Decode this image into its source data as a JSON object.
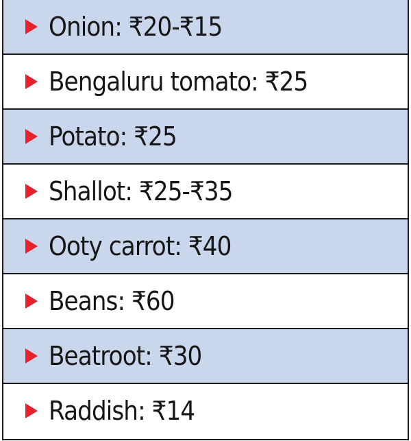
{
  "items": [
    {
      "label": "Onion: ₹20-₹15"
    },
    {
      "label": "Bengaluru tomato: ₹25"
    },
    {
      "label": "Potato: ₹25"
    },
    {
      "label": "Shallot: ₹25-₹35"
    },
    {
      "label": "Ooty carrot: ₹40"
    },
    {
      "label": "Beans: ₹60"
    },
    {
      "label": "Beatroot: ₹30"
    },
    {
      "label": "Raddish: ₹14"
    }
  ],
  "colors": {
    "row_shaded": "#c9d6ec",
    "row_plain": "#ffffff",
    "bullet": "#e8202a",
    "border": "#1a1a1a",
    "text": "#161616"
  },
  "icons": {
    "bullet": "triangle-right-icon"
  }
}
